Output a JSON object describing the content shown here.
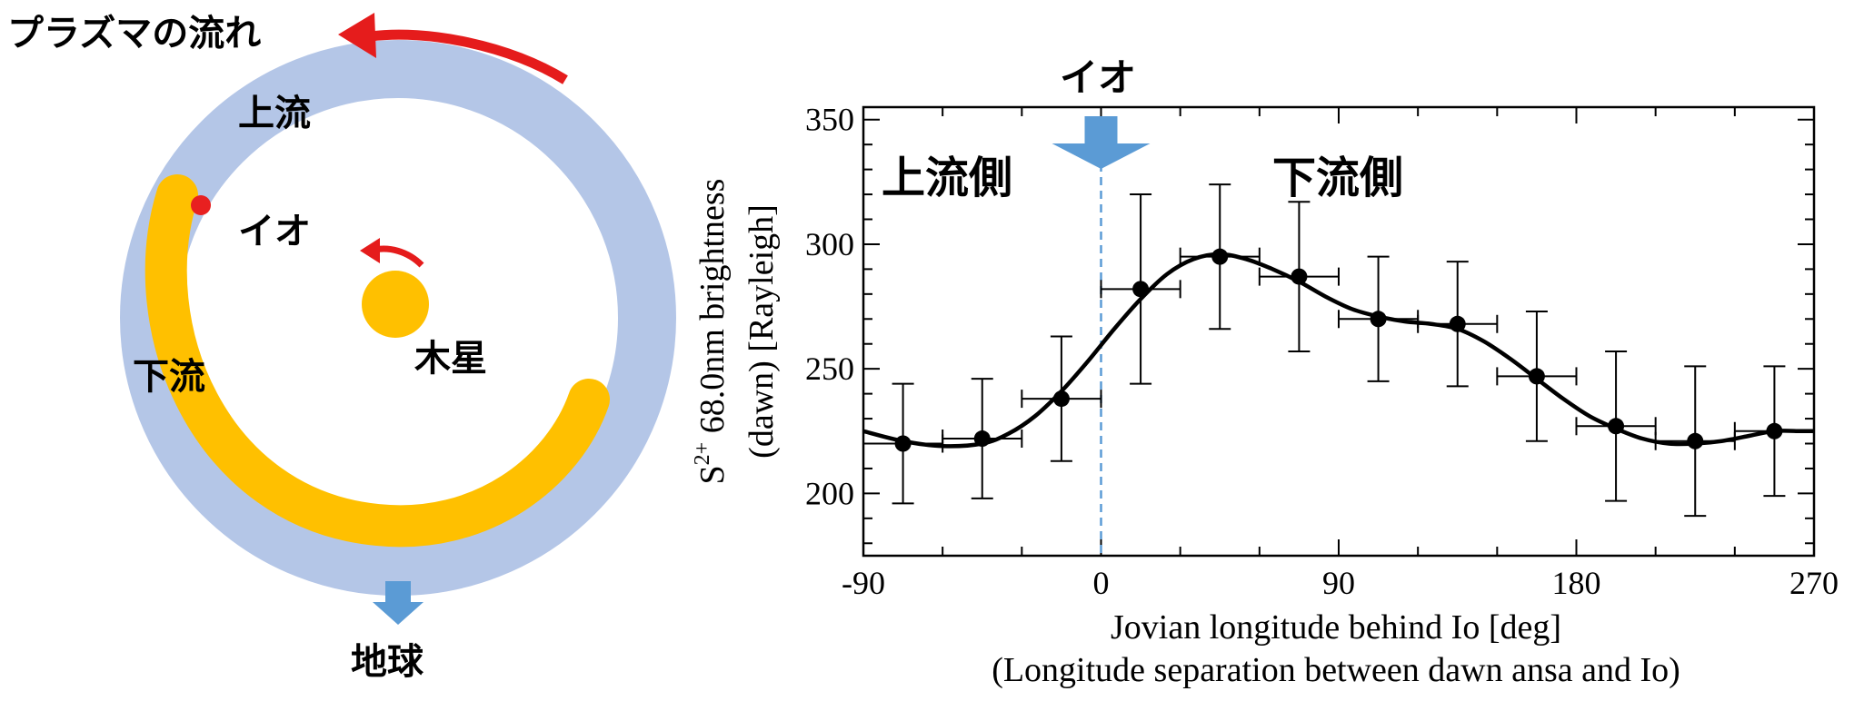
{
  "diagram": {
    "plasma_flow_label": "プラズマの流れ",
    "upstream_label": "上流",
    "downstream_label": "下流",
    "io_label": "イオ",
    "jupiter_label": "木星",
    "earth_label": "地球"
  },
  "colors": {
    "torus": "#b4c6e7",
    "io_tail": "#ffc000",
    "jupiter": "#ffc000",
    "io_dot": "#e82020",
    "flow_arrow": "#e51c1c",
    "earth_arrow": "#5b9bd5",
    "curve": "#000000"
  },
  "chart_data": {
    "type": "scatter",
    "xlabel_line1": "Jovian longitude behind Io [deg]",
    "xlabel_line2": "(Longitude separation between dawn ansa and Io)",
    "ylabel_prefix": "S",
    "ylabel_superscript": "2+",
    "ylabel_line1_rest": " 68.0nm brightness",
    "ylabel_line2": "(dawn) [Rayleigh]",
    "xlim": [
      -90,
      270
    ],
    "ylim": [
      175,
      355
    ],
    "xticks": [
      -90,
      0,
      90,
      180,
      270
    ],
    "yticks": [
      200,
      250,
      300,
      350
    ],
    "io_marker_label": "イオ",
    "io_marker_x": 0,
    "upstream_label": "上流側",
    "downstream_label": "下流側",
    "points": [
      {
        "x": -75,
        "y": 220,
        "xerr": 15,
        "yerr": 24
      },
      {
        "x": -45,
        "y": 222,
        "xerr": 15,
        "yerr": 24
      },
      {
        "x": -15,
        "y": 238,
        "xerr": 15,
        "yerr": 25
      },
      {
        "x": 15,
        "y": 282,
        "xerr": 15,
        "yerr": 38
      },
      {
        "x": 45,
        "y": 295,
        "xerr": 15,
        "yerr": 29
      },
      {
        "x": 75,
        "y": 287,
        "xerr": 15,
        "yerr": 30
      },
      {
        "x": 105,
        "y": 270,
        "xerr": 15,
        "yerr": 25
      },
      {
        "x": 135,
        "y": 268,
        "xerr": 15,
        "yerr": 25
      },
      {
        "x": 165,
        "y": 247,
        "xerr": 15,
        "yerr": 26
      },
      {
        "x": 195,
        "y": 227,
        "xerr": 15,
        "yerr": 30
      },
      {
        "x": 225,
        "y": 221,
        "xerr": 15,
        "yerr": 30
      },
      {
        "x": 255,
        "y": 225,
        "xerr": 15,
        "yerr": 26
      }
    ],
    "fit_curve": {
      "x": [
        -90,
        -75,
        -60,
        -45,
        -35,
        -25,
        -15,
        -5,
        5,
        15,
        25,
        35,
        45,
        55,
        65,
        75,
        85,
        95,
        105,
        115,
        125,
        135,
        145,
        155,
        165,
        175,
        185,
        195,
        205,
        215,
        225,
        235,
        245,
        255,
        265,
        270
      ],
      "y": [
        225,
        221,
        219,
        220,
        224,
        231,
        241,
        253,
        266,
        278,
        288,
        294,
        296,
        294,
        290,
        285,
        279,
        274,
        271,
        269,
        268,
        266,
        261,
        254,
        246,
        238,
        231,
        226,
        222,
        220,
        220,
        221,
        223,
        225,
        225,
        225
      ]
    }
  }
}
